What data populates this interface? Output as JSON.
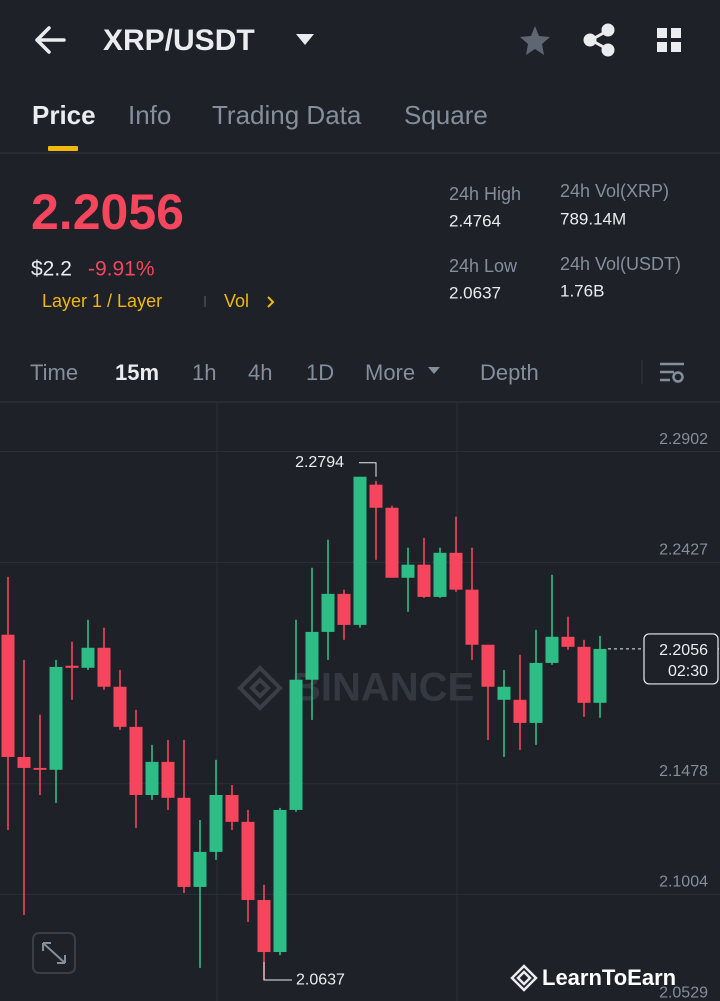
{
  "header": {
    "title": "XRP/USDT"
  },
  "tabs": [
    "Price",
    "Info",
    "Trading Data",
    "Square"
  ],
  "price": {
    "last": "2.2056",
    "fiat": "$2.2",
    "change": "-9.91%",
    "tag": "Layer 1 / Layer",
    "vol": "Vol"
  },
  "stats": [
    {
      "label": "24h High",
      "value": "2.4764"
    },
    {
      "label": "24h Vol(XRP)",
      "value": "789.14M"
    },
    {
      "label": "24h Low",
      "value": "2.0637"
    },
    {
      "label": "24h Vol(USDT)",
      "value": "1.76B"
    }
  ],
  "intervals": [
    "Time",
    "15m",
    "1h",
    "4h",
    "1D",
    "More",
    "Depth"
  ],
  "watermark": "BINANCE",
  "badge": "LearnToEarn",
  "chart_data": {
    "type": "candlestick",
    "up_color": "#2ebd85",
    "down_color": "#f6465d",
    "grid": true,
    "ylim": [
      2.05,
      2.311
    ],
    "yticks": [
      2.2902,
      2.2427,
      2.1478,
      2.1004,
      2.0529
    ],
    "countdown": "02:30",
    "open": [
      2.2117,
      2.1593,
      2.1546,
      2.1538,
      2.1984,
      2.1975,
      2.2061,
      2.1894,
      2.1722,
      2.143,
      2.1572,
      2.1418,
      2.1036,
      2.1186,
      2.143,
      2.1315,
      2.098,
      2.0757,
      2.1366,
      2.1924,
      2.2129,
      2.2292,
      2.2159,
      2.276,
      2.2661,
      2.2361,
      2.2417,
      2.2279,
      2.2468,
      2.231,
      2.2074,
      2.1838,
      2.1838,
      2.1739,
      2.1996,
      2.2108,
      2.2065,
      2.1825
    ],
    "high": [
      2.2365,
      2.2009,
      2.1774,
      2.2009,
      2.2087,
      2.2181,
      2.2147,
      2.1966,
      2.1795,
      2.1645,
      2.1666,
      2.1666,
      2.1323,
      2.1581,
      2.1473,
      2.1366,
      2.1045,
      2.1375,
      2.2181,
      2.2404,
      2.2524,
      2.231,
      2.2794,
      2.2776,
      2.267,
      2.249,
      2.2532,
      2.249,
      2.2623,
      2.249,
      2.2074,
      2.1966,
      2.2031,
      2.2138,
      2.2374,
      2.2194,
      2.2095,
      2.2112
    ],
    "low": [
      2.128,
      2.0916,
      2.143,
      2.1396,
      2.1838,
      2.1966,
      2.1881,
      2.1709,
      2.1289,
      2.1409,
      2.1366,
      2.101,
      2.0689,
      2.1152,
      2.128,
      2.0886,
      2.0637,
      2.0744,
      2.1358,
      2.1752,
      2.2009,
      2.2095,
      2.2147,
      2.2438,
      2.2361,
      2.2215,
      2.2275,
      2.2275,
      2.2301,
      2.2009,
      2.1666,
      2.1593,
      2.1623,
      2.1645,
      2.1988,
      2.2052,
      2.1765,
      2.1761
    ],
    "close": [
      2.1593,
      2.1546,
      2.1538,
      2.1979,
      2.1975,
      2.2061,
      2.1894,
      2.1722,
      2.143,
      2.1572,
      2.1418,
      2.1036,
      2.1186,
      2.143,
      2.1315,
      2.098,
      2.0757,
      2.1366,
      2.1924,
      2.2129,
      2.2292,
      2.2159,
      2.2794,
      2.2661,
      2.2361,
      2.2417,
      2.2279,
      2.2468,
      2.231,
      2.2074,
      2.1894,
      2.1894,
      2.1739,
      2.1996,
      2.2108,
      2.2065,
      2.1825,
      2.2056
    ]
  }
}
